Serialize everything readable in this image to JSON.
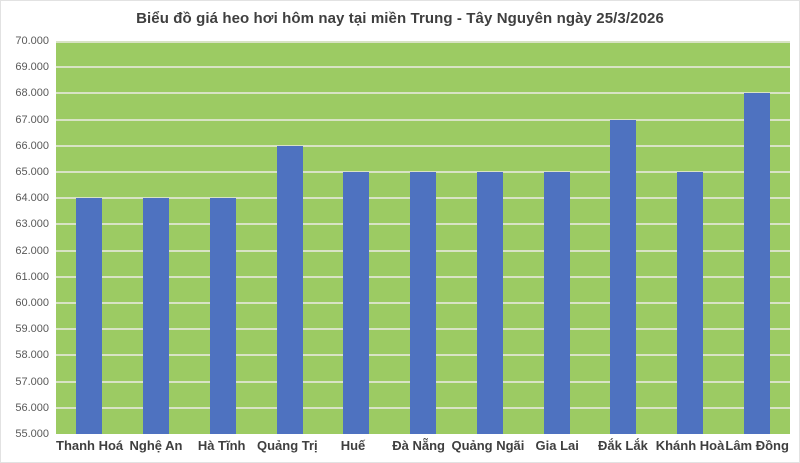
{
  "colors": {
    "page_background": "#FFFFFF",
    "frame_border": "#E2E2E2",
    "plot_background": "#9CCB63",
    "bar": "#4E72C0",
    "gridline": "#D8E3C4",
    "title_text": "#3F3F3F",
    "ytick_text": "#595959",
    "xtick_text": "#3F3F3F"
  },
  "chart_data": {
    "type": "bar",
    "title": "Biểu đồ giá heo hơi hôm nay tại miền Trung - Tây Nguyên ngày 25/3/2026",
    "categories": [
      "Thanh Hoá",
      "Nghệ An",
      "Hà Tĩnh",
      "Quảng Trị",
      "Huế",
      "Đà Nẵng",
      "Quảng Ngãi",
      "Gia Lai",
      "Đắk Lắk",
      "Khánh Hoà",
      "Lâm Đồng"
    ],
    "values": [
      64000,
      64000,
      64000,
      66000,
      65000,
      65000,
      65000,
      65000,
      67000,
      65000,
      68000
    ],
    "xlabel": "",
    "ylabel": "",
    "ylim": [
      55000,
      70000
    ],
    "ytick_step": 1000,
    "ytick_labels": [
      "70.000",
      "69.000",
      "68.000",
      "67.000",
      "66.000",
      "65.000",
      "64.000",
      "63.000",
      "62.000",
      "61.000",
      "60.000",
      "59.000",
      "58.000",
      "57.000",
      "56.000",
      "55.000"
    ],
    "grid": true,
    "legend": false,
    "series_color": "#4E72C0"
  }
}
